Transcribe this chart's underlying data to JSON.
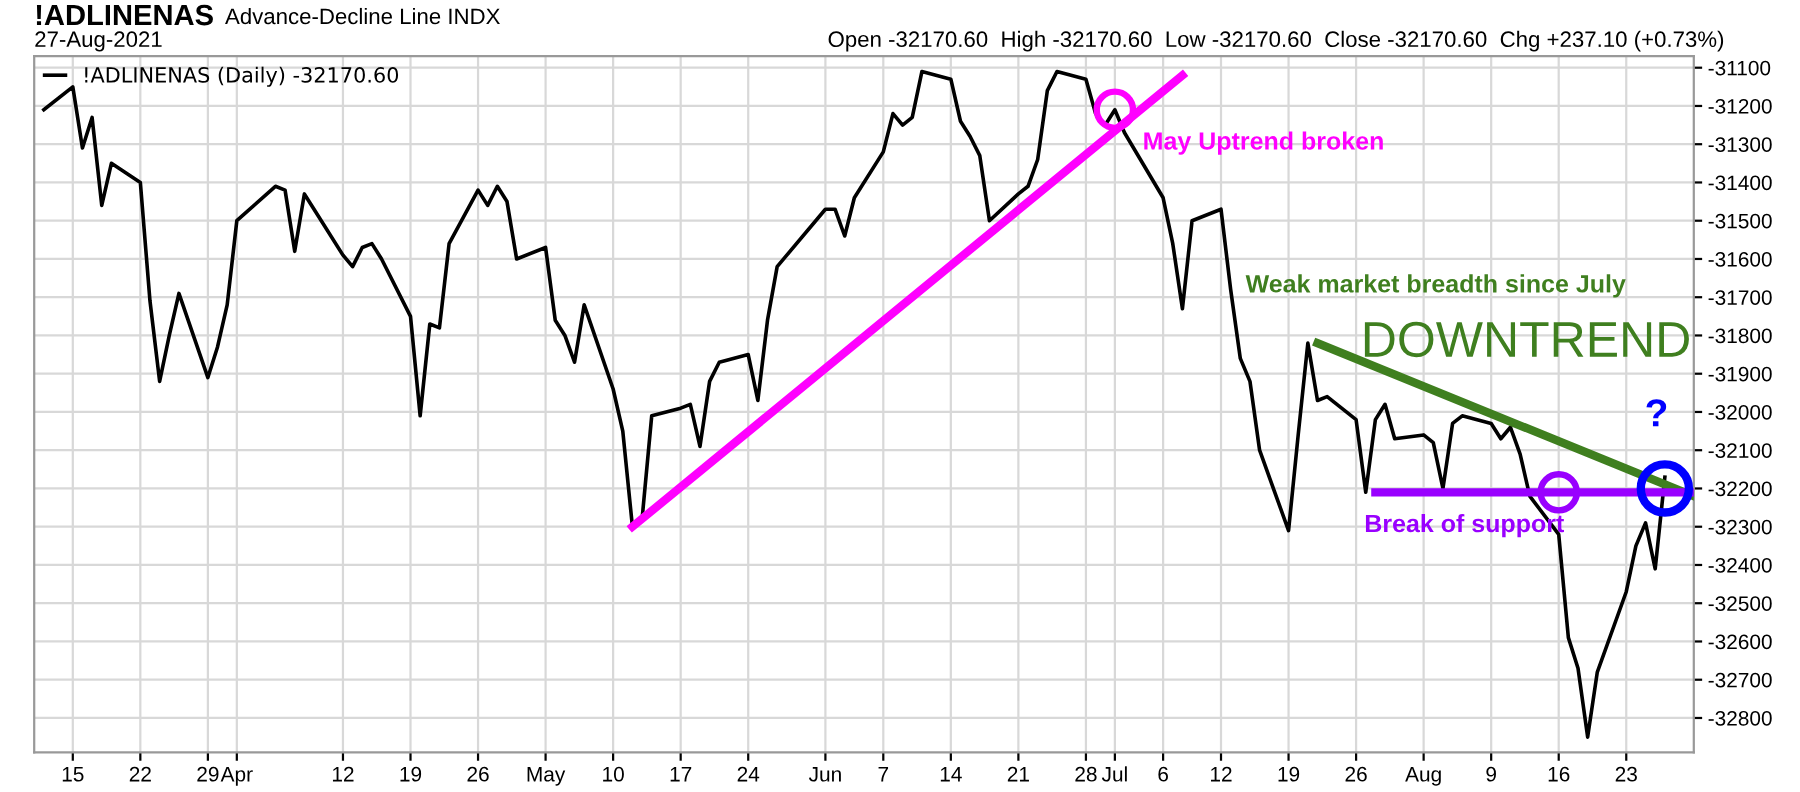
{
  "chart_data": {
    "type": "line",
    "title": "!ADLINENAS",
    "subtitle": "Advance-Decline Line INDX",
    "x": [
      "2021-03-12",
      "2021-03-15",
      "2021-03-16",
      "2021-03-17",
      "2021-03-18",
      "2021-03-19",
      "2021-03-22",
      "2021-03-23",
      "2021-03-24",
      "2021-03-25",
      "2021-03-26",
      "2021-03-29",
      "2021-03-30",
      "2021-03-31",
      "2021-04-01",
      "2021-04-05",
      "2021-04-06",
      "2021-04-07",
      "2021-04-08",
      "2021-04-09",
      "2021-04-12",
      "2021-04-13",
      "2021-04-14",
      "2021-04-15",
      "2021-04-16",
      "2021-04-19",
      "2021-04-20",
      "2021-04-21",
      "2021-04-22",
      "2021-04-23",
      "2021-04-26",
      "2021-04-27",
      "2021-04-28",
      "2021-04-29",
      "2021-04-30",
      "2021-05-03",
      "2021-05-04",
      "2021-05-05",
      "2021-05-06",
      "2021-05-07",
      "2021-05-10",
      "2021-05-11",
      "2021-05-12",
      "2021-05-13",
      "2021-05-14",
      "2021-05-17",
      "2021-05-18",
      "2021-05-19",
      "2021-05-20",
      "2021-05-21",
      "2021-05-24",
      "2021-05-25",
      "2021-05-26",
      "2021-05-27",
      "2021-05-28",
      "2021-06-01",
      "2021-06-02",
      "2021-06-03",
      "2021-06-04",
      "2021-06-07",
      "2021-06-08",
      "2021-06-09",
      "2021-06-10",
      "2021-06-11",
      "2021-06-14",
      "2021-06-15",
      "2021-06-16",
      "2021-06-17",
      "2021-06-18",
      "2021-06-21",
      "2021-06-22",
      "2021-06-23",
      "2021-06-24",
      "2021-06-25",
      "2021-06-28",
      "2021-06-29",
      "2021-06-30",
      "2021-07-01",
      "2021-07-02",
      "2021-07-06",
      "2021-07-07",
      "2021-07-08",
      "2021-07-09",
      "2021-07-12",
      "2021-07-13",
      "2021-07-14",
      "2021-07-15",
      "2021-07-16",
      "2021-07-19",
      "2021-07-20",
      "2021-07-21",
      "2021-07-22",
      "2021-07-23",
      "2021-07-26",
      "2021-07-27",
      "2021-07-28",
      "2021-07-29",
      "2021-07-30",
      "2021-08-02",
      "2021-08-03",
      "2021-08-04",
      "2021-08-05",
      "2021-08-06",
      "2021-08-09",
      "2021-08-10",
      "2021-08-11",
      "2021-08-12",
      "2021-08-13",
      "2021-08-16",
      "2021-08-17",
      "2021-08-18",
      "2021-08-19",
      "2021-08-20",
      "2021-08-23",
      "2021-08-24",
      "2021-08-25",
      "2021-08-26",
      "2021-08-27"
    ],
    "series": [
      {
        "name": "!ADLINENAS (Daily) -32170.60",
        "color": "#000000",
        "values": [
          -31210,
          -31150,
          -31310,
          -31230,
          -31460,
          -31350,
          -31400,
          -31710,
          -31920,
          -31800,
          -31690,
          -31910,
          -31830,
          -31720,
          -31500,
          -31410,
          -31420,
          -31580,
          -31430,
          -31470,
          -31590,
          -31620,
          -31570,
          -31560,
          -31600,
          -31750,
          -32010,
          -31770,
          -31780,
          -31560,
          -31420,
          -31460,
          -31410,
          -31450,
          -31600,
          -31570,
          -31760,
          -31800,
          -31870,
          -31720,
          -31940,
          -32050,
          -32300,
          -32280,
          -32010,
          -31990,
          -31980,
          -32090,
          -31920,
          -31870,
          -31850,
          -31970,
          -31760,
          -31620,
          -31590,
          -31470,
          -31470,
          -31540,
          -31440,
          -31320,
          -31220,
          -31250,
          -31230,
          -31110,
          -31130,
          -31240,
          -31280,
          -31330,
          -31500,
          -31430,
          -31410,
          -31340,
          -31160,
          -31110,
          -31130,
          -31220,
          -31250,
          -31210,
          -31270,
          -31440,
          -31560,
          -31730,
          -31500,
          -31470,
          -31680,
          -31860,
          -31920,
          -32100,
          -32310,
          -32060,
          -31820,
          -31970,
          -31960,
          -32020,
          -32210,
          -32020,
          -31980,
          -32070,
          -32060,
          -32080,
          -32200,
          -32030,
          -32010,
          -32030,
          -32070,
          -32040,
          -32110,
          -32220,
          -32320,
          -32590,
          -32670,
          -32850,
          -32680,
          -32470,
          -32350,
          -32290,
          -32410,
          -32170.6
        ]
      },
      {
        "color": "#ff00ff",
        "x": [
          "2021-05-12",
          "2021-07-08"
        ],
        "values": [
          -32300,
          -31120
        ]
      },
      {
        "color": "#3f7f1f",
        "x": [
          "2021-07-22",
          "2021-08-30"
        ],
        "values": [
          -31820,
          -32220
        ]
      },
      {
        "color": "#9900ff",
        "x": [
          "2021-07-28",
          "2021-08-30"
        ],
        "values": [
          -32210,
          -32210
        ]
      },
      {
        "type": "scatter",
        "marker": "circle",
        "color": "#ff00ff",
        "x": [
          "2021-07-01"
        ],
        "values": [
          -31210
        ]
      },
      {
        "type": "scatter",
        "marker": "circle",
        "color": "#9900ff",
        "x": [
          "2021-08-16"
        ],
        "values": [
          -32210
        ]
      },
      {
        "type": "scatter",
        "marker": "circle",
        "color": "#0000ff",
        "x": [
          "2021-08-27"
        ],
        "values": [
          -32200
        ]
      }
    ],
    "xlim": [
      "2021-03-11",
      "2021-08-30"
    ],
    "xticks": [
      {
        "value": "2021-03-15",
        "label": "15"
      },
      {
        "value": "2021-03-22",
        "label": "22"
      },
      {
        "value": "2021-03-29",
        "label": "29"
      },
      {
        "value": "2021-04-01",
        "label": "Apr"
      },
      {
        "value": "2021-04-12",
        "label": "12"
      },
      {
        "value": "2021-04-19",
        "label": "19"
      },
      {
        "value": "2021-04-26",
        "label": "26"
      },
      {
        "value": "2021-05-03",
        "label": "May"
      },
      {
        "value": "2021-05-10",
        "label": "10"
      },
      {
        "value": "2021-05-17",
        "label": "17"
      },
      {
        "value": "2021-05-24",
        "label": "24"
      },
      {
        "value": "2021-06-01",
        "label": "Jun"
      },
      {
        "value": "2021-06-07",
        "label": "7"
      },
      {
        "value": "2021-06-14",
        "label": "14"
      },
      {
        "value": "2021-06-21",
        "label": "21"
      },
      {
        "value": "2021-06-28",
        "label": "28"
      },
      {
        "value": "2021-07-01",
        "label": "Jul"
      },
      {
        "value": "2021-07-06",
        "label": "6"
      },
      {
        "value": "2021-07-12",
        "label": "12"
      },
      {
        "value": "2021-07-19",
        "label": "19"
      },
      {
        "value": "2021-07-26",
        "label": "26"
      },
      {
        "value": "2021-08-02",
        "label": "Aug"
      },
      {
        "value": "2021-08-09",
        "label": "9"
      },
      {
        "value": "2021-08-16",
        "label": "16"
      },
      {
        "value": "2021-08-23",
        "label": "23"
      }
    ],
    "ylim": [
      -32890,
      -31070
    ],
    "yticks": [
      -31100,
      -31200,
      -31300,
      -31400,
      -31500,
      -31600,
      -31700,
      -31800,
      -31900,
      -32000,
      -32100,
      -32200,
      -32300,
      -32400,
      -32500,
      -32600,
      -32700,
      -32800
    ],
    "grid": true,
    "legend": "top left",
    "marker": "none",
    "line_style": "solid",
    "annotations": [
      "27-Aug-2021",
      "Open -32170.60  High -32170.60  Low -32170.60  Close -32170.60  Chg +237.10 (+0.73%)",
      "Weak market breadth since July",
      "DOWNTREND",
      {
        "text": "May Uptrend broken",
        "x": "2021-07-01",
        "y": -31210
      },
      {
        "text": "Break of support",
        "x": "2021-08-16",
        "y": -32210
      },
      {
        "text": "?",
        "x": "2021-08-27",
        "y": -32200
      }
    ]
  }
}
